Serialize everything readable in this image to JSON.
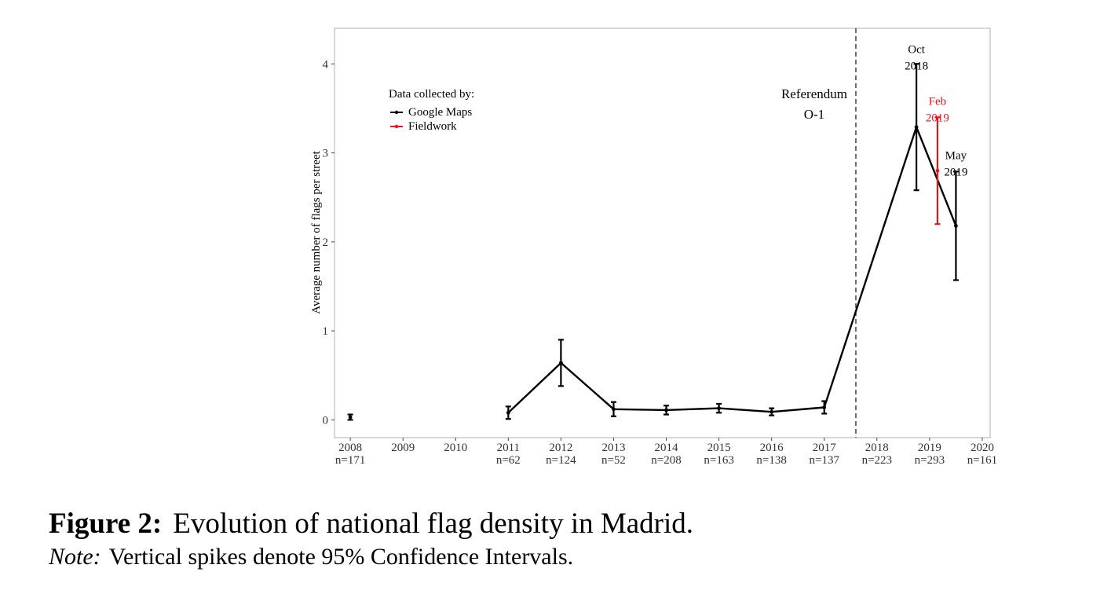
{
  "chart_data": {
    "type": "line",
    "ylabel": "Average number of flags per street",
    "xlim": [
      2007.7,
      2020.15
    ],
    "ylim": [
      -0.2,
      4.4
    ],
    "yticks": [
      0,
      1,
      2,
      3,
      4
    ],
    "grid": false,
    "legend": {
      "title": "Data collected by:",
      "position": "top-left",
      "entries": [
        {
          "label": "Google Maps",
          "color": "#000000"
        },
        {
          "label": "Fieldwork",
          "color": "#e8131b"
        }
      ]
    },
    "x_ticks": [
      {
        "x": 2008,
        "year": "2008",
        "n": "n=171"
      },
      {
        "x": 2009,
        "year": "2009",
        "n": ""
      },
      {
        "x": 2010,
        "year": "2010",
        "n": ""
      },
      {
        "x": 2011,
        "year": "2011",
        "n": "n=62"
      },
      {
        "x": 2012,
        "year": "2012",
        "n": "n=124"
      },
      {
        "x": 2013,
        "year": "2013",
        "n": "n=52"
      },
      {
        "x": 2014,
        "year": "2014",
        "n": "n=208"
      },
      {
        "x": 2015,
        "year": "2015",
        "n": "n=163"
      },
      {
        "x": 2016,
        "year": "2016",
        "n": "n=138"
      },
      {
        "x": 2017,
        "year": "2017",
        "n": "n=137"
      },
      {
        "x": 2018,
        "year": "2018",
        "n": "n=223"
      },
      {
        "x": 2019,
        "year": "2019",
        "n": "n=293"
      },
      {
        "x": 2020,
        "year": "2020",
        "n": "n=161"
      }
    ],
    "series": [
      {
        "name": "Google Maps",
        "color": "#000000",
        "points": [
          {
            "x": 2008,
            "y": 0.03,
            "lo": 0.0,
            "hi": 0.06
          }
        ]
      },
      {
        "name": "Google Maps",
        "color": "#000000",
        "points": [
          {
            "x": 2011,
            "y": 0.08,
            "lo": 0.01,
            "hi": 0.15
          },
          {
            "x": 2012,
            "y": 0.64,
            "lo": 0.38,
            "hi": 0.9
          },
          {
            "x": 2013,
            "y": 0.12,
            "lo": 0.04,
            "hi": 0.2
          },
          {
            "x": 2014,
            "y": 0.11,
            "lo": 0.06,
            "hi": 0.16
          },
          {
            "x": 2015,
            "y": 0.13,
            "lo": 0.08,
            "hi": 0.18
          },
          {
            "x": 2016,
            "y": 0.09,
            "lo": 0.05,
            "hi": 0.13
          },
          {
            "x": 2017,
            "y": 0.14,
            "lo": 0.07,
            "hi": 0.21
          },
          {
            "x": 2018.75,
            "y": 3.29,
            "lo": 2.58,
            "hi": 4.0
          },
          {
            "x": 2019.5,
            "y": 2.18,
            "lo": 1.57,
            "hi": 2.79
          }
        ]
      },
      {
        "name": "Fieldwork",
        "color": "#e8131b",
        "points": [
          {
            "x": 2019.15,
            "y": 2.8,
            "lo": 2.2,
            "hi": 3.4
          }
        ]
      }
    ],
    "vline": {
      "x": 2017.6,
      "style": "dashed",
      "label": [
        "Referendum",
        "O-1"
      ]
    },
    "annotations": [
      {
        "x": 2018.75,
        "y": 4.12,
        "lines": [
          "Oct",
          "2018"
        ],
        "color": "#000000"
      },
      {
        "x": 2019.15,
        "y": 3.54,
        "lines": [
          "Feb",
          "2019"
        ],
        "color": "#e8131b"
      },
      {
        "x": 2019.5,
        "y": 2.93,
        "lines": [
          "May",
          "2019"
        ],
        "color": "#000000"
      }
    ]
  },
  "caption": {
    "label": "Figure 2:",
    "text": "Evolution of national flag density in Madrid.",
    "note_label": "Note:",
    "note_text": "Vertical spikes denote 95% Confidence Intervals."
  }
}
